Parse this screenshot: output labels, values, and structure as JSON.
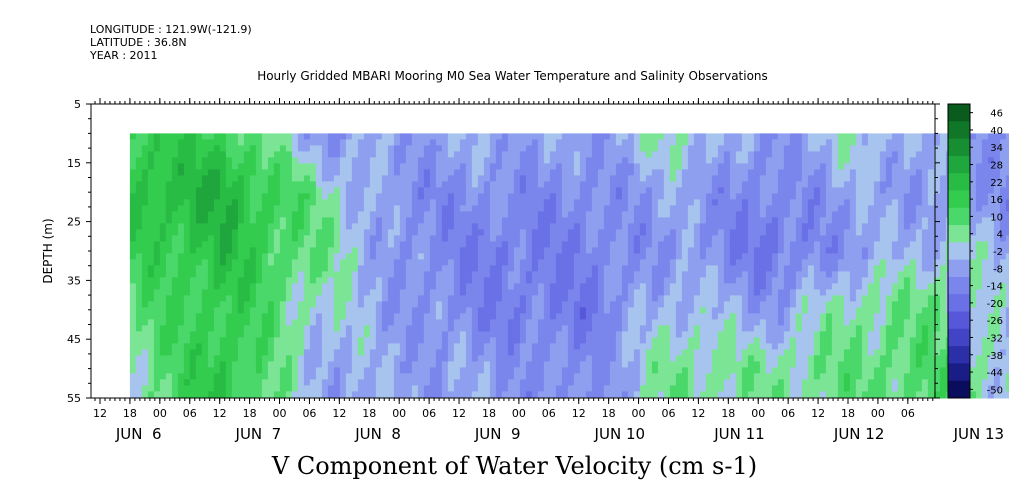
{
  "header": {
    "longitude": "LONGITUDE : 121.9W(-121.9)",
    "latitude": "LATITUDE : 36.8N",
    "year": "YEAR : 2011",
    "title": "Hourly Gridded MBARI Mooring M0 Sea Water Temperature and Salinity Observations"
  },
  "chart_data": {
    "type": "heatmap",
    "title": "V Component of Water Velocity (cm s-1)",
    "ylabel": "DEPTH (m)",
    "ylim": [
      55,
      5
    ],
    "yticks": [
      5,
      15,
      25,
      35,
      45,
      55
    ],
    "xlim_hours_label": "Jun 5 09:00 to Jun 13 14:00, 2011",
    "data_start": "Jun 5 18:00",
    "data_end": "Jun 13 12:00",
    "data_top_depth": 10,
    "hour_ticks": [
      "12",
      "18",
      "00",
      "06",
      "12",
      "18",
      "00",
      "06",
      "12",
      "18",
      "00",
      "06",
      "12",
      "18",
      "00",
      "06",
      "12",
      "18",
      "00",
      "06",
      "12",
      "18",
      "00",
      "06",
      "12",
      "18",
      "00",
      "06",
      "12",
      "18",
      "00",
      "06"
    ],
    "day_labels": [
      "JUN  6",
      "JUN  7",
      "JUN  8",
      "JUN  9",
      "JUN 10",
      "JUN 11",
      "JUN 12",
      "JUN 13"
    ],
    "colorbar": {
      "labels": [
        "46",
        "40",
        "34",
        "28",
        "22",
        "16",
        "10",
        "4",
        "-2",
        "-8",
        "-14",
        "-20",
        "-26",
        "-32",
        "-38",
        "-44",
        "-50"
      ],
      "colors": [
        "#0a5c1e",
        "#107628",
        "#178e32",
        "#1fa63c",
        "#28bc45",
        "#33cc4f",
        "#4bd86a",
        "#7be595",
        "#a7c4ee",
        "#8f9ff0",
        "#7a86ec",
        "#6a70e6",
        "#5658d9",
        "#4144c4",
        "#2c30a8",
        "#1a1d86",
        "#0a0c5c"
      ]
    },
    "series": [
      {
        "time_frac": 0.0,
        "values_by_depth": {
          "10": 20,
          "20": 22,
          "30": 16,
          "40": 10,
          "50": 6
        }
      },
      {
        "time_frac": 0.1,
        "values_by_depth": {
          "10": 18,
          "20": 28,
          "30": 24,
          "40": 20,
          "50": 22
        }
      },
      {
        "time_frac": 0.2,
        "values_by_depth": {
          "10": -6,
          "20": 8,
          "30": 10,
          "40": 4,
          "50": -2
        }
      },
      {
        "time_frac": 0.3,
        "values_by_depth": {
          "10": -4,
          "20": -10,
          "30": -8,
          "40": -6,
          "50": -4
        }
      },
      {
        "time_frac": 0.4,
        "values_by_depth": {
          "10": -2,
          "20": -8,
          "30": -14,
          "40": -12,
          "50": -6
        }
      },
      {
        "time_frac": 0.5,
        "values_by_depth": {
          "10": -6,
          "20": -10,
          "30": -12,
          "40": -14,
          "50": -10
        }
      },
      {
        "time_frac": 0.6,
        "values_by_depth": {
          "10": 6,
          "20": -4,
          "30": -6,
          "40": 2,
          "50": 8
        }
      },
      {
        "time_frac": 0.7,
        "values_by_depth": {
          "10": -8,
          "20": -12,
          "30": -16,
          "40": -6,
          "50": 6
        }
      },
      {
        "time_frac": 0.8,
        "values_by_depth": {
          "10": 4,
          "20": -4,
          "30": -6,
          "40": 8,
          "50": 10
        }
      },
      {
        "time_frac": 0.9,
        "values_by_depth": {
          "10": -6,
          "20": -6,
          "30": 2,
          "40": 10,
          "50": 12
        }
      },
      {
        "time_frac": 1.0,
        "values_by_depth": {
          "10": -8,
          "20": -10,
          "30": -6,
          "40": -10,
          "50": -4
        }
      }
    ]
  }
}
